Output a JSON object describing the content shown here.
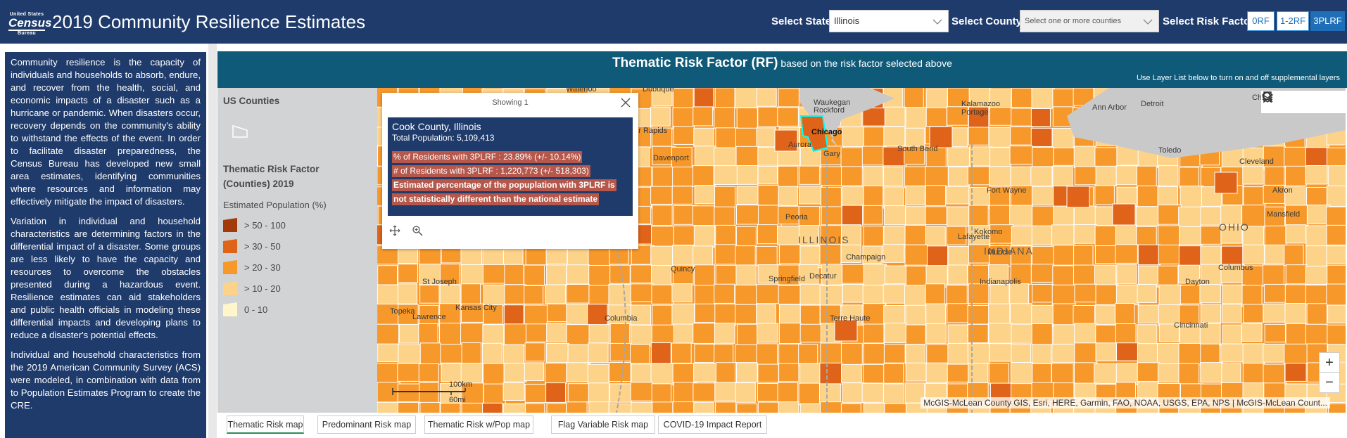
{
  "header": {
    "logo": {
      "top": "United States",
      "main": "Census",
      "bottom": "Bureau"
    },
    "title": "2019 Community Resilience Estimates",
    "state_label": "Select State:",
    "state_value": "Illinois",
    "county_label": "Select County:",
    "county_placeholder": "Select one or more counties",
    "risk_label": "Select Risk Factor:",
    "risk_options": [
      "0RF",
      "1-2RF",
      "3PLRF"
    ],
    "risk_selected": "3PLRF"
  },
  "description": {
    "paragraphs": [
      "Community resilience is the capacity of individuals and households to absorb, endure, and recover from the health, social, and economic impacts of a disaster such as a hurricane or pandemic.  When disasters occur, recovery depends on the community's ability to withstand the effects of the event. In order to facilitate disaster preparedness, the Census Bureau has developed new small area estimates, identifying communities where resources and information may effectively mitigate the impact of disasters.",
      "Variation in individual and household characteristics are determining factors in the differential impact of a disaster. Some groups are less likely to have the capacity and resources to overcome the obstacles presented during a hazardous event.  Resilience estimates can aid stakeholders and public health officials in modeling these differential impacts and developing plans to reduce a disaster's potential effects.",
      "Individual and household characteristics from the 2019 American Community Survey (ACS) were modeled, in combination with data from to Population Estimates Program to create the CRE."
    ]
  },
  "banner": {
    "title_bold": "Thematic Risk Factor (RF)",
    "title_rest": " based on the risk factor selected above",
    "subtitle": "Use Layer List below to turn on and off supplemental layers"
  },
  "legend": {
    "layer1": "US Counties",
    "layer2_line1": "Thematic Risk Factor",
    "layer2_line2": "(Counties) 2019",
    "field": "Estimated Population (%)",
    "classes": [
      {
        "label": "> 50 - 100",
        "color": "#a33a0c"
      },
      {
        "label": "> 30 - 50",
        "color": "#df6318"
      },
      {
        "label": "> 20 - 30",
        "color": "#f7982a"
      },
      {
        "label": "> 10 - 20",
        "color": "#fdd38a"
      },
      {
        "label": "0 - 10",
        "color": "#fff6cc"
      }
    ]
  },
  "popup": {
    "header": "Showing 1",
    "county": "Cook County, Illinois",
    "population": "Total Population: 5,109,413",
    "pct": "% of Residents with 3PLRF : 23.89% (+/- 10.14%)",
    "count": "# of Residents with 3PLRF : 1,220,773 (+/- 518,303)",
    "note_line1": "Estimated percentage of the popuplation with 3PLRF is",
    "note_line2": "not statistically different than the national estimate"
  },
  "map": {
    "cities": [
      {
        "name": "Waterloo"
      },
      {
        "name": "Dubuque"
      },
      {
        "name": "Rockford"
      },
      {
        "name": "Waukegan"
      },
      {
        "name": "Kalamazoo"
      },
      {
        "name": "Portage"
      },
      {
        "name": "Ann Arbor"
      },
      {
        "name": "Detroit"
      },
      {
        "name": "Cedar Rapids"
      },
      {
        "name": "Chicago"
      },
      {
        "name": "Aurora"
      },
      {
        "name": "Gary"
      },
      {
        "name": "South Bend"
      },
      {
        "name": "Toledo"
      },
      {
        "name": "Davenport"
      },
      {
        "name": "Cleveland"
      },
      {
        "name": "Fort Wayne"
      },
      {
        "name": "Akron"
      },
      {
        "name": "Peoria"
      },
      {
        "name": "Mansfield"
      },
      {
        "name": "Kokomo"
      },
      {
        "name": "Lafayette"
      },
      {
        "name": "Muncie"
      },
      {
        "name": "Champaign"
      },
      {
        "name": "Quincy"
      },
      {
        "name": "Springfield"
      },
      {
        "name": "Decatur"
      },
      {
        "name": "Indianapolis"
      },
      {
        "name": "St Joseph"
      },
      {
        "name": "Columbus"
      },
      {
        "name": "Dayton"
      },
      {
        "name": "Terre Haute"
      },
      {
        "name": "Topeka"
      },
      {
        "name": "Kansas City"
      },
      {
        "name": "Lawrence"
      },
      {
        "name": "Columbia"
      },
      {
        "name": "Cincinnati"
      },
      {
        "name": "Cha"
      }
    ],
    "states": [
      "ILLINOIS",
      "INDIANA",
      "OHIO"
    ],
    "scale_km": "100km",
    "scale_mi": "60mi",
    "attribution": "McGIS-McLean County GIS, Esri, HERE, Garmin, FAO, NOAA, USGS, EPA, NPS | McGIS-McLean Count...",
    "zoom_in": "+",
    "zoom_out": "−"
  },
  "tabs": [
    "Thematic Risk map",
    "Predominant Risk map",
    "Thematic Risk w/Pop map",
    "Flag Variable Risk map",
    "COVID-19 Impact Report"
  ],
  "active_tab": "Thematic Risk map"
}
